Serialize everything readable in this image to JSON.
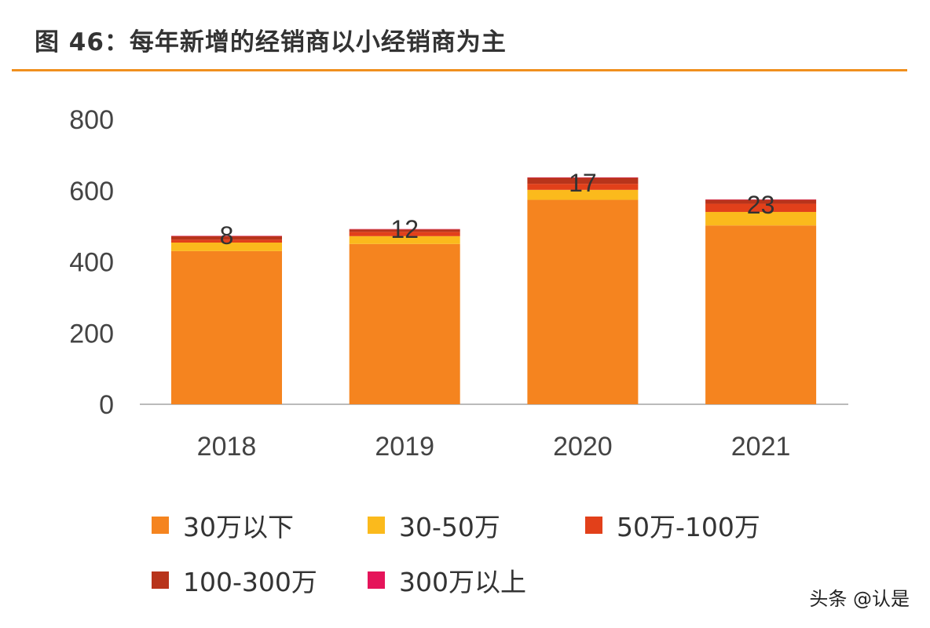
{
  "title": "图 46：每年新增的经销商以小经销商为主",
  "watermark": "头条 @认是",
  "chart_data": {
    "type": "bar",
    "stacked": true,
    "title": "图 46：每年新增的经销商以小经销商为主",
    "xlabel": "",
    "ylabel": "",
    "ylim": [
      0,
      800
    ],
    "yticks": [
      "0",
      "200",
      "400",
      "600",
      "800"
    ],
    "grid": false,
    "legend_position": "bottom",
    "categories": [
      "2018",
      "2019",
      "2020",
      "2021"
    ],
    "series": [
      {
        "name": "30万以下",
        "color": "#F5841F",
        "values": [
          430,
          450,
          574,
          502
        ]
      },
      {
        "name": "30-50万",
        "color": "#FBBA1C",
        "values": [
          24,
          22,
          28,
          38
        ]
      },
      {
        "name": "50万-100万",
        "color": "#E2401A",
        "values": [
          8,
          12,
          17,
          23
        ]
      },
      {
        "name": "100-300万",
        "color": "#B8341B",
        "values": [
          10,
          7,
          17,
          11
        ]
      },
      {
        "name": "300万以上",
        "color": "#E5145A",
        "values": [
          1,
          1,
          1,
          1
        ]
      }
    ],
    "data_labels": [
      "8",
      "12",
      "17",
      "23"
    ]
  }
}
